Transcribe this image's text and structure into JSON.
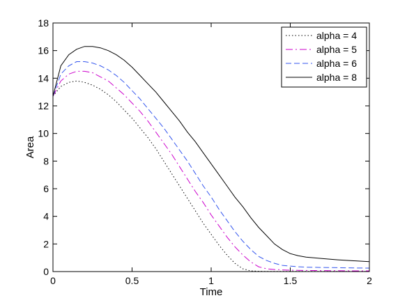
{
  "chart_data": {
    "type": "line",
    "title": "",
    "xlabel": "Time",
    "ylabel": "Area",
    "xlim": [
      0,
      2
    ],
    "ylim": [
      0,
      18
    ],
    "x_ticks": [
      0,
      0.5,
      1,
      1.5,
      2
    ],
    "x_tick_labels": [
      "0",
      "0.5",
      "1",
      "1.5",
      "2"
    ],
    "y_ticks": [
      0,
      2,
      4,
      6,
      8,
      10,
      12,
      14,
      16,
      18
    ],
    "y_tick_labels": [
      "0",
      "2",
      "4",
      "6",
      "8",
      "10",
      "12",
      "14",
      "16",
      "18"
    ],
    "grid": false,
    "legend_position": "top-right",
    "x": [
      0,
      0.05,
      0.1,
      0.15,
      0.2,
      0.25,
      0.3,
      0.35,
      0.4,
      0.45,
      0.5,
      0.55,
      0.6,
      0.65,
      0.7,
      0.75,
      0.8,
      0.85,
      0.9,
      0.95,
      1.0,
      1.05,
      1.1,
      1.15,
      1.2,
      1.25,
      1.3,
      1.35,
      1.4,
      1.45,
      1.5,
      1.55,
      1.6,
      1.7,
      1.8,
      1.9,
      2.0
    ],
    "series": [
      {
        "name": "alpha = 4",
        "color": "#000000",
        "dash": "1.5,3",
        "values": [
          12.7,
          13.4,
          13.7,
          13.8,
          13.7,
          13.5,
          13.2,
          12.8,
          12.3,
          11.7,
          11.1,
          10.4,
          9.7,
          8.9,
          8.0,
          7.1,
          6.2,
          5.3,
          4.4,
          3.5,
          2.7,
          1.9,
          1.2,
          0.6,
          0.2,
          0.05,
          0.02,
          0.01,
          0.01,
          0.01,
          0.01,
          0.01,
          0.01,
          0.01,
          0.01,
          0.01,
          0.01
        ]
      },
      {
        "name": "alpha = 5",
        "color": "#cc00cc",
        "dash": "10,4,2,4",
        "values": [
          12.7,
          13.8,
          14.3,
          14.5,
          14.5,
          14.4,
          14.1,
          13.8,
          13.3,
          12.8,
          12.2,
          11.6,
          10.9,
          10.1,
          9.3,
          8.5,
          7.6,
          6.7,
          5.8,
          5.0,
          4.1,
          3.3,
          2.5,
          1.8,
          1.2,
          0.7,
          0.35,
          0.2,
          0.15,
          0.12,
          0.1,
          0.09,
          0.08,
          0.07,
          0.06,
          0.05,
          0.05
        ]
      },
      {
        "name": "alpha = 6",
        "color": "#3355ee",
        "dash": "8,4",
        "values": [
          12.7,
          14.3,
          14.9,
          15.2,
          15.2,
          15.1,
          14.9,
          14.6,
          14.2,
          13.7,
          13.1,
          12.5,
          11.8,
          11.1,
          10.4,
          9.6,
          8.8,
          8.0,
          7.1,
          6.2,
          5.4,
          4.5,
          3.7,
          2.9,
          2.2,
          1.6,
          1.1,
          0.8,
          0.6,
          0.45,
          0.4,
          0.35,
          0.32,
          0.3,
          0.28,
          0.26,
          0.25
        ]
      },
      {
        "name": "alpha = 8",
        "color": "#000000",
        "dash": "",
        "values": [
          12.7,
          14.9,
          15.7,
          16.1,
          16.3,
          16.3,
          16.2,
          16.0,
          15.7,
          15.3,
          14.8,
          14.2,
          13.6,
          13.0,
          12.3,
          11.6,
          10.9,
          10.1,
          9.4,
          8.6,
          7.8,
          7.0,
          6.2,
          5.4,
          4.7,
          3.9,
          3.2,
          2.6,
          2.0,
          1.6,
          1.3,
          1.15,
          1.05,
          0.95,
          0.85,
          0.78,
          0.72
        ]
      }
    ]
  }
}
